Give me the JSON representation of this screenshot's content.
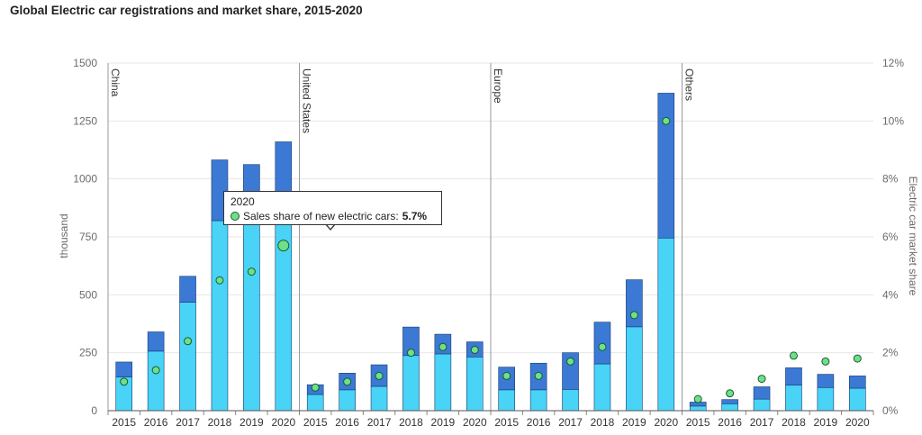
{
  "chart_data": {
    "type": "bar",
    "title": "Global Electric car registrations and market share, 2015-2020",
    "ylabel": "thousand",
    "y2label": "Electric car market share",
    "ylim": [
      0,
      1500
    ],
    "y_ticks": [
      "0",
      "250",
      "500",
      "750",
      "1000",
      "1250",
      "1500"
    ],
    "y2lim": [
      0,
      12
    ],
    "y2_ticks": [
      "0%",
      "2%",
      "4%",
      "6%",
      "8%",
      "10%",
      "12%"
    ],
    "years": [
      "2015",
      "2016",
      "2017",
      "2018",
      "2019",
      "2020"
    ],
    "groups": [
      {
        "region": "China",
        "bev": [
          145,
          257,
          468,
          820,
          810,
          930
        ],
        "phev": [
          65,
          83,
          112,
          262,
          252,
          230
        ],
        "share": [
          1.0,
          1.4,
          2.4,
          4.5,
          4.8,
          5.7
        ]
      },
      {
        "region": "United States",
        "bev": [
          70,
          90,
          105,
          238,
          245,
          232
        ],
        "phev": [
          42,
          72,
          93,
          123,
          85,
          65
        ],
        "share": [
          0.8,
          1.0,
          1.2,
          2.0,
          2.2,
          2.1
        ]
      },
      {
        "region": "Europe",
        "bev": [
          90,
          90,
          92,
          202,
          362,
          745
        ],
        "phev": [
          98,
          115,
          158,
          180,
          203,
          625
        ],
        "share": [
          1.2,
          1.2,
          1.7,
          2.2,
          3.3,
          10.0
        ]
      },
      {
        "region": "Others",
        "bev": [
          20,
          30,
          50,
          110,
          100,
          97
        ],
        "phev": [
          17,
          18,
          53,
          75,
          57,
          53
        ],
        "share": [
          0.4,
          0.6,
          1.1,
          1.9,
          1.7,
          1.8
        ]
      }
    ],
    "colors": {
      "bev": "#48d3f7",
      "phev": "#3b79d4",
      "share": "#6ee08a",
      "bar_outline": "#1a3a6e",
      "dot_outline": "#1a5c2a"
    },
    "highlight": {
      "group": 0,
      "year_index": 5
    },
    "tooltip": {
      "year": "2020",
      "label": "Sales share of new electric cars:",
      "value": "5.7%"
    }
  }
}
